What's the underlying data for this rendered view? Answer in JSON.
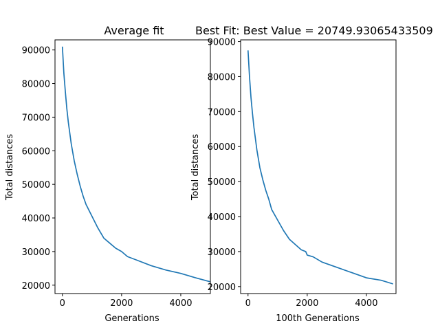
{
  "chart_data": [
    {
      "type": "line",
      "title": "Average fit",
      "xlabel": "Generations",
      "ylabel": "Total distances",
      "xlim": [
        -250,
        5000
      ],
      "ylim": [
        17500,
        93000
      ],
      "xticks": [
        0,
        2000,
        4000
      ],
      "xtick_labels": [
        "0",
        "2000",
        "4000"
      ],
      "yticks": [
        20000,
        30000,
        40000,
        50000,
        60000,
        70000,
        80000,
        90000
      ],
      "ytick_labels": [
        "20000",
        "30000",
        "40000",
        "50000",
        "60000",
        "70000",
        "80000",
        "90000"
      ],
      "grid": false,
      "color": "#1f77b4",
      "series": [
        {
          "x": [
            0,
            50,
            100,
            150,
            200,
            300,
            400,
            500,
            600,
            700,
            800,
            1000,
            1200,
            1400,
            1600,
            1800,
            2000,
            2200,
            2500,
            3000,
            3500,
            4000,
            4500,
            5000
          ],
          "y": [
            91000,
            83000,
            77500,
            72500,
            68500,
            62000,
            57000,
            53000,
            49500,
            46500,
            44000,
            40500,
            37000,
            34000,
            32500,
            31000,
            30000,
            28500,
            27500,
            25800,
            24500,
            23500,
            22200,
            21000
          ]
        }
      ]
    },
    {
      "type": "line",
      "title": "Best Fit: Best Value = 20749.93065433509",
      "xlabel": "100th Generations",
      "ylabel": "Total distances",
      "xlim": [
        -250,
        5000
      ],
      "ylim": [
        18000,
        90500
      ],
      "xticks": [
        0,
        2000,
        4000
      ],
      "xtick_labels": [
        "0",
        "2000",
        "4000"
      ],
      "yticks": [
        20000,
        30000,
        40000,
        50000,
        60000,
        70000,
        80000,
        90000
      ],
      "ytick_labels": [
        "20000",
        "30000",
        "40000",
        "50000",
        "60000",
        "70000",
        "80000",
        "90000"
      ],
      "grid": false,
      "color": "#1f77b4",
      "series": [
        {
          "x": [
            0,
            50,
            100,
            150,
            200,
            300,
            400,
            500,
            600,
            700,
            800,
            1000,
            1200,
            1400,
            1600,
            1800,
            1950,
            2000,
            2200,
            2500,
            3000,
            3500,
            4000,
            4500,
            4900
          ],
          "y": [
            87500,
            80000,
            74000,
            69500,
            65500,
            59000,
            54000,
            50500,
            47500,
            45000,
            42000,
            39000,
            36000,
            33500,
            32000,
            30500,
            30000,
            29000,
            28500,
            27000,
            25500,
            24000,
            22500,
            21800,
            20750
          ]
        }
      ]
    }
  ]
}
